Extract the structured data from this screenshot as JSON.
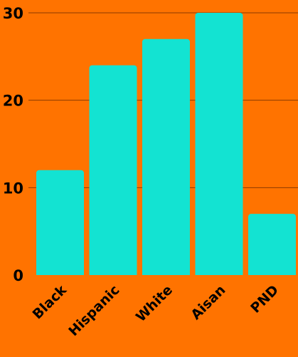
{
  "chart_data": {
    "type": "bar",
    "title": "",
    "xlabel": "",
    "ylabel": "",
    "categories": [
      "Black",
      "Hispanic",
      "White",
      "Aisan",
      "PND"
    ],
    "values": [
      12,
      24,
      27,
      30,
      7
    ],
    "ylim": [
      0,
      30
    ],
    "y_ticks": [
      "0",
      "10",
      "20",
      "30"
    ],
    "grid": true,
    "legend": "none"
  },
  "colors": {
    "background": "#ff7300",
    "bar": "#13e3d2",
    "gridline": "#8b3a00",
    "text": "#000000"
  }
}
